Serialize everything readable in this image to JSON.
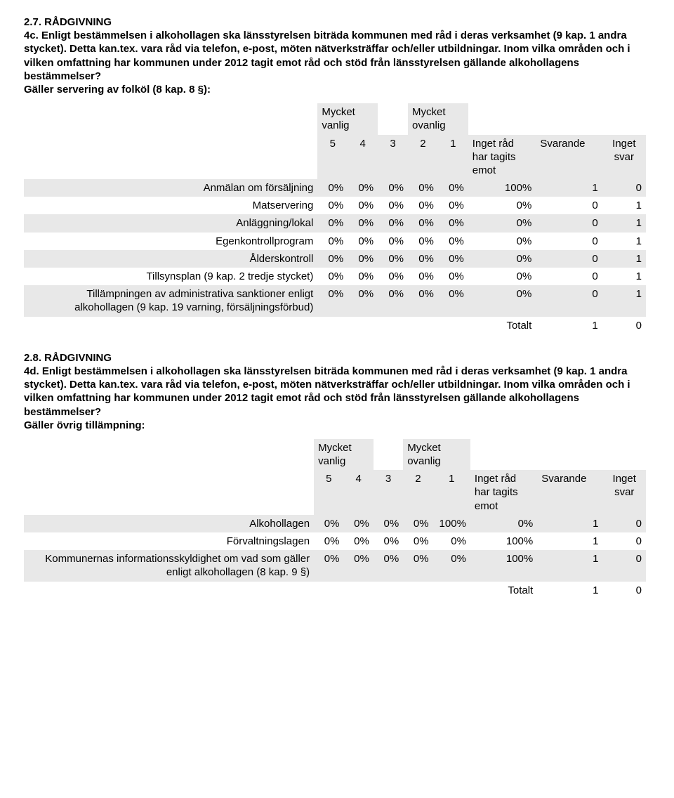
{
  "section1": {
    "title": "2.7. RÅDGIVNING",
    "text": "4c. Enligt bestämmelsen i alkohollagen ska länsstyrelsen biträda kommunen med råd i deras verksamhet (9 kap. 1 andra stycket). Detta kan.tex. vara råd via telefon, e-post, möten nätverksträffar och/eller utbildningar. Inom vilka områden och i vilken omfattning har kommunen under 2012 tagit emot råd och stöd från länsstyrelsen gällande alkohollagens bestämmelser?",
    "subtext": "Gäller servering av folköl (8 kap. 8 §):"
  },
  "section2": {
    "title": "2.8. RÅDGIVNING",
    "text": "4d. Enligt bestämmelsen i alkohollagen ska länsstyrelsen biträda kommunen med råd i deras verksamhet (9 kap. 1 andra stycket). Detta kan.tex. vara råd via telefon, e-post, möten nätverksträffar och/eller utbildningar. Inom vilka områden och i vilken omfattning har kommunen under 2012 tagit emot råd och stöd från länsstyrelsen gällande alkohollagens bestämmelser?",
    "subtext": "Gäller övrig tillämpning:"
  },
  "headers": {
    "vanlig": "Mycket vanlig",
    "ovanlig": "Mycket ovanlig",
    "c5": "5",
    "c4": "4",
    "c3": "3",
    "c2": "2",
    "c1": "1",
    "ingetrad1": "Inget råd har tagits emot",
    "ingetrad2": "Inget råd har tagits emot",
    "svarande": "Svarande",
    "ingetsvar": "Inget svar",
    "totalt": "Totalt"
  },
  "table1": {
    "rows": [
      {
        "label": "Anmälan om försäljning",
        "v": [
          "0%",
          "0%",
          "0%",
          "0%",
          "0%",
          "100%",
          "1",
          "0"
        ]
      },
      {
        "label": "Matservering",
        "v": [
          "0%",
          "0%",
          "0%",
          "0%",
          "0%",
          "0%",
          "0",
          "1"
        ]
      },
      {
        "label": "Anläggning/lokal",
        "v": [
          "0%",
          "0%",
          "0%",
          "0%",
          "0%",
          "0%",
          "0",
          "1"
        ]
      },
      {
        "label": "Egenkontrollprogram",
        "v": [
          "0%",
          "0%",
          "0%",
          "0%",
          "0%",
          "0%",
          "0",
          "1"
        ]
      },
      {
        "label": "Ålderskontroll",
        "v": [
          "0%",
          "0%",
          "0%",
          "0%",
          "0%",
          "0%",
          "0",
          "1"
        ]
      },
      {
        "label": "Tillsynsplan (9 kap. 2 tredje stycket)",
        "v": [
          "0%",
          "0%",
          "0%",
          "0%",
          "0%",
          "0%",
          "0",
          "1"
        ]
      },
      {
        "label": "Tillämpningen av administrativa sanktioner enligt alkohollagen (9 kap. 19 varning, försäljningsförbud)",
        "v": [
          "0%",
          "0%",
          "0%",
          "0%",
          "0%",
          "0%",
          "0",
          "1"
        ]
      }
    ],
    "total": [
      "1",
      "0"
    ]
  },
  "table2": {
    "rows": [
      {
        "label": "Alkohollagen",
        "v": [
          "0%",
          "0%",
          "0%",
          "0%",
          "100%",
          "0%",
          "1",
          "0"
        ]
      },
      {
        "label": "Förvaltningslagen",
        "v": [
          "0%",
          "0%",
          "0%",
          "0%",
          "0%",
          "100%",
          "1",
          "0"
        ]
      },
      {
        "label": "Kommunernas informationsskyldighet om vad som gäller enligt alkohollagen (8 kap. 9 §)",
        "v": [
          "0%",
          "0%",
          "0%",
          "0%",
          "0%",
          "100%",
          "1",
          "0"
        ]
      }
    ],
    "total": [
      "1",
      "0"
    ]
  }
}
